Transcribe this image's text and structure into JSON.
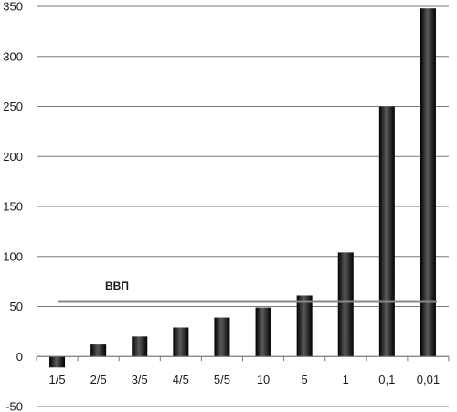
{
  "chart_data": {
    "type": "bar",
    "categories": [
      "1/5",
      "2/5",
      "3/5",
      "4/5",
      "5/5",
      "10",
      "5",
      "1",
      "0,1",
      "0,01"
    ],
    "values": [
      -11,
      12,
      20,
      29,
      39,
      49,
      61,
      104,
      250,
      348
    ],
    "ylim": [
      -50,
      350
    ],
    "y_ticks": [
      -50,
      0,
      50,
      100,
      150,
      200,
      250,
      300,
      350
    ],
    "grid": true,
    "bar_color": "#1a1a1a",
    "reference_line": {
      "label": "ВВП",
      "value": 55,
      "color": "#888888"
    }
  }
}
